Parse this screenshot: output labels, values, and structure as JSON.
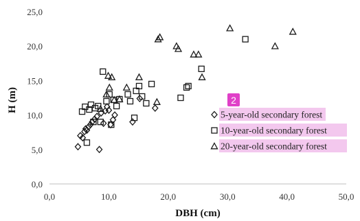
{
  "chart_data": {
    "type": "scatter",
    "title": "",
    "xlabel": "DBH (cm)",
    "ylabel": "H (m)",
    "xlim": [
      0,
      50
    ],
    "ylim": [
      0,
      25
    ],
    "x_ticks": [
      "0,0",
      "10,0",
      "20,0",
      "30,0",
      "40,0",
      "50,0"
    ],
    "y_ticks": [
      "0,0",
      "5,0",
      "10,0",
      "15,0",
      "20,0",
      "25,0"
    ],
    "grid": false,
    "legend_position": "right-middle",
    "legend_badge": "2",
    "series": [
      {
        "name": "5-year-old secondary forest",
        "marker": "diamond",
        "points": [
          [
            4.8,
            5.4
          ],
          [
            5.2,
            7.0
          ],
          [
            5.6,
            6.7
          ],
          [
            5.9,
            7.6
          ],
          [
            6.1,
            8.0
          ],
          [
            6.3,
            7.8
          ],
          [
            6.6,
            8.3
          ],
          [
            6.9,
            8.6
          ],
          [
            7.2,
            9.0
          ],
          [
            7.6,
            9.4
          ],
          [
            8.0,
            9.8
          ],
          [
            8.4,
            5.0
          ],
          [
            8.7,
            10.3
          ],
          [
            9.1,
            8.8
          ],
          [
            9.4,
            10.6
          ],
          [
            9.7,
            11.2
          ],
          [
            10.0,
            10.7
          ],
          [
            10.3,
            8.6
          ],
          [
            10.7,
            9.3
          ],
          [
            11.0,
            10.0
          ],
          [
            14.0,
            9.0
          ],
          [
            15.2,
            12.4
          ],
          [
            17.8,
            11.0
          ]
        ]
      },
      {
        "name": "10-year-old secondary forest",
        "marker": "square",
        "points": [
          [
            5.5,
            10.5
          ],
          [
            6.0,
            11.2
          ],
          [
            6.3,
            6.0
          ],
          [
            6.7,
            10.8
          ],
          [
            7.0,
            11.5
          ],
          [
            7.4,
            9.0
          ],
          [
            7.7,
            11.0
          ],
          [
            8.2,
            11.3
          ],
          [
            8.6,
            9.0
          ],
          [
            9.0,
            16.3
          ],
          [
            9.6,
            12.0
          ],
          [
            10.1,
            13.0
          ],
          [
            10.4,
            8.6
          ],
          [
            10.8,
            12.2
          ],
          [
            11.3,
            11.3
          ],
          [
            11.8,
            12.3
          ],
          [
            13.2,
            13.0
          ],
          [
            13.6,
            12.0
          ],
          [
            14.3,
            9.6
          ],
          [
            14.6,
            13.5
          ],
          [
            15.1,
            14.2
          ],
          [
            15.6,
            12.7
          ],
          [
            16.3,
            11.7
          ],
          [
            17.2,
            14.5
          ],
          [
            22.1,
            12.5
          ],
          [
            23.1,
            14.0
          ],
          [
            23.4,
            14.2
          ],
          [
            25.6,
            16.7
          ],
          [
            33.0,
            21.0
          ]
        ]
      },
      {
        "name": "20-year-old secondary forest",
        "marker": "triangle",
        "points": [
          [
            8.6,
            10.9
          ],
          [
            9.6,
            13.0
          ],
          [
            9.9,
            15.7
          ],
          [
            10.1,
            14.0
          ],
          [
            10.5,
            15.5
          ],
          [
            10.9,
            12.2
          ],
          [
            11.8,
            12.3
          ],
          [
            13.0,
            14.0
          ],
          [
            15.1,
            15.5
          ],
          [
            18.1,
            11.9
          ],
          [
            18.3,
            21.0
          ],
          [
            18.6,
            21.3
          ],
          [
            21.4,
            20.0
          ],
          [
            21.7,
            19.6
          ],
          [
            24.3,
            18.8
          ],
          [
            25.1,
            18.8
          ],
          [
            25.7,
            15.5
          ],
          [
            30.4,
            22.6
          ],
          [
            38.0,
            20.0
          ],
          [
            41.0,
            22.1
          ]
        ]
      }
    ]
  }
}
